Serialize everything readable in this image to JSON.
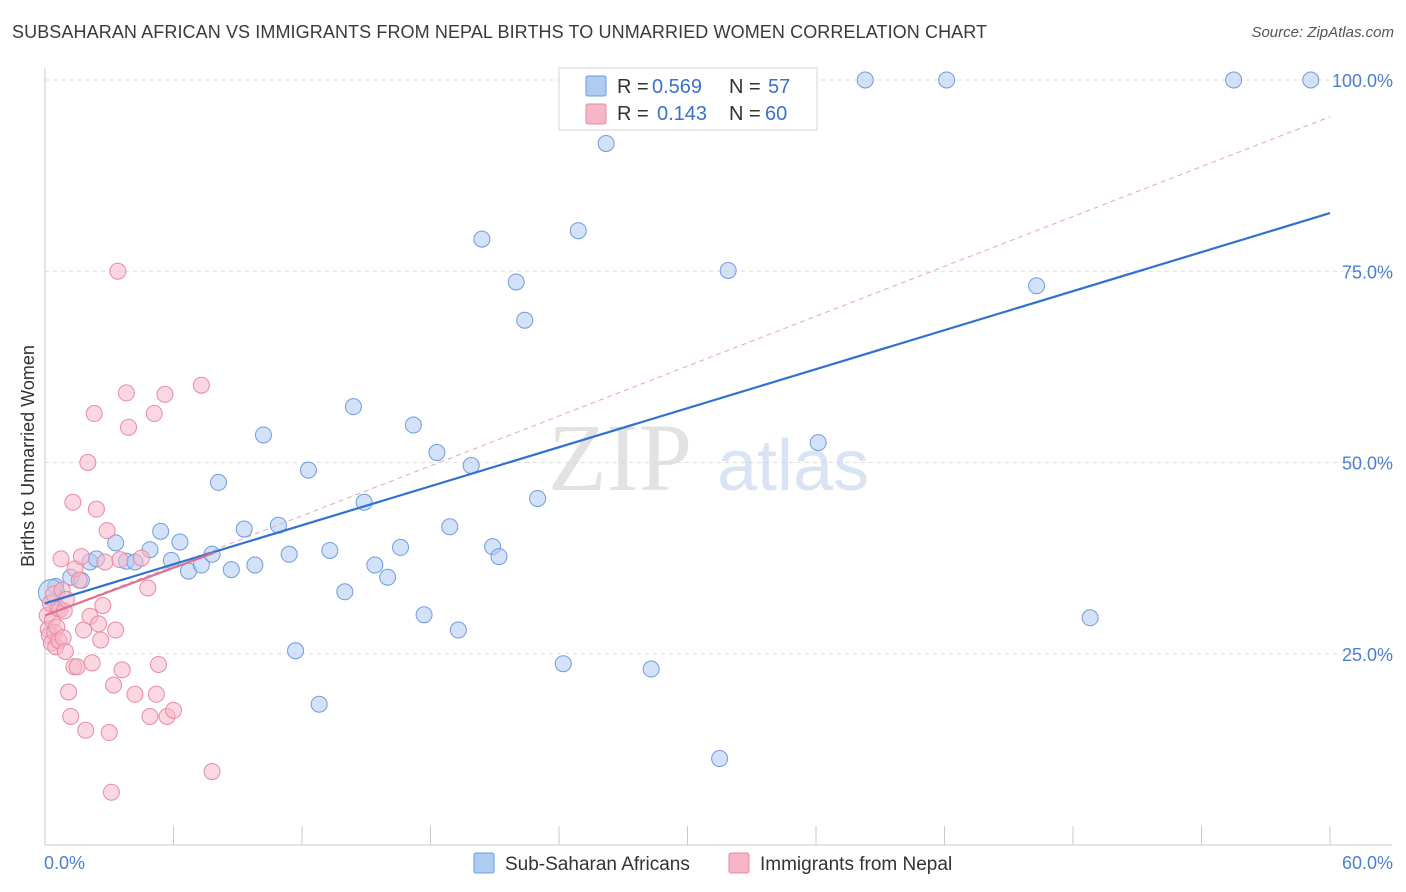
{
  "title": "SUBSAHARAN AFRICAN VS IMMIGRANTS FROM NEPAL BIRTHS TO UNMARRIED WOMEN CORRELATION CHART",
  "source": "Source: ZipAtlas.com",
  "watermark": {
    "zip": "ZIP",
    "atlas": "atlas"
  },
  "legend_top": [
    {
      "r_label": "R =",
      "r_value": "0.569",
      "n_label": "N =",
      "n_value": "57",
      "color": "#aecbf2"
    },
    {
      "r_label": "R =",
      "r_value": "0.143",
      "n_label": "N =",
      "n_value": "60",
      "color": "#f6b6c8"
    }
  ],
  "chart_data": {
    "type": "scatter",
    "title": "SUBSAHARAN AFRICAN VS IMMIGRANTS FROM NEPAL BIRTHS TO UNMARRIED WOMEN CORRELATION CHART",
    "xlabel": "",
    "ylabel": "Births to Unmarried Women",
    "xlim": [
      0,
      60
    ],
    "ylim": [
      0,
      100
    ],
    "x_tick_labels": [
      "0.0%",
      "60.0%"
    ],
    "y_tick_labels": [
      "25.0%",
      "50.0%",
      "75.0%",
      "100.0%"
    ],
    "y_ticks": [
      25,
      50,
      75,
      100
    ],
    "grid": true,
    "legend_position": "bottom",
    "series": [
      {
        "name": "Sub-Saharan Africans",
        "color": "#aecbf2",
        "edge": "#6f9be0",
        "trend_color": "#2f72d0",
        "trend": {
          "x": [
            0,
            60
          ],
          "y": [
            31.6,
            82.6
          ]
        },
        "points": [
          [
            0.5,
            33.8
          ],
          [
            1.2,
            35.0
          ],
          [
            1.7,
            34.6
          ],
          [
            2.1,
            37.0
          ],
          [
            2.4,
            37.4
          ],
          [
            3.3,
            39.5
          ],
          [
            3.8,
            37.1
          ],
          [
            4.2,
            37.0
          ],
          [
            4.9,
            38.6
          ],
          [
            5.4,
            41.0
          ],
          [
            5.9,
            37.2
          ],
          [
            6.3,
            39.6
          ],
          [
            6.7,
            35.8
          ],
          [
            7.3,
            36.6
          ],
          [
            7.8,
            38.0
          ],
          [
            8.1,
            47.4
          ],
          [
            8.7,
            36.0
          ],
          [
            9.3,
            41.3
          ],
          [
            9.8,
            36.6
          ],
          [
            10.2,
            53.6
          ],
          [
            10.9,
            41.8
          ],
          [
            11.4,
            38.0
          ],
          [
            11.7,
            25.4
          ],
          [
            12.3,
            49.0
          ],
          [
            12.8,
            18.4
          ],
          [
            13.3,
            38.5
          ],
          [
            14.0,
            33.1
          ],
          [
            14.4,
            57.3
          ],
          [
            14.9,
            44.8
          ],
          [
            15.4,
            36.6
          ],
          [
            16.0,
            35.0
          ],
          [
            16.6,
            38.9
          ],
          [
            17.2,
            54.9
          ],
          [
            17.7,
            30.1
          ],
          [
            18.3,
            51.3
          ],
          [
            18.9,
            41.6
          ],
          [
            19.3,
            28.1
          ],
          [
            19.9,
            49.6
          ],
          [
            20.4,
            79.2
          ],
          [
            20.9,
            39.0
          ],
          [
            21.2,
            37.7
          ],
          [
            22.0,
            73.6
          ],
          [
            22.4,
            68.6
          ],
          [
            23.0,
            45.3
          ],
          [
            24.2,
            23.7
          ],
          [
            24.9,
            80.3
          ],
          [
            26.2,
            91.7
          ],
          [
            28.3,
            23.0
          ],
          [
            31.5,
            11.3
          ],
          [
            31.9,
            75.1
          ],
          [
            36.1,
            52.6
          ],
          [
            38.3,
            100.0
          ],
          [
            42.1,
            100.0
          ],
          [
            46.3,
            73.1
          ],
          [
            48.8,
            29.7
          ],
          [
            55.5,
            100.0
          ],
          [
            59.1,
            100.0
          ]
        ]
      },
      {
        "name": "Immigrants from Nepal",
        "color": "#f6b6c8",
        "edge": "#e88aa6",
        "trend_color": "#e0708f",
        "trend": {
          "x": [
            0,
            7.9
          ],
          "y": [
            30.0,
            38.2
          ]
        },
        "dashed_trend": {
          "x": [
            0,
            60
          ],
          "y": [
            30.0,
            95.2
          ]
        },
        "points": [
          [
            0.1,
            30.0
          ],
          [
            0.15,
            28.2
          ],
          [
            0.2,
            27.4
          ],
          [
            0.25,
            31.6
          ],
          [
            0.3,
            26.4
          ],
          [
            0.35,
            29.4
          ],
          [
            0.4,
            32.8
          ],
          [
            0.45,
            27.8
          ],
          [
            0.5,
            25.9
          ],
          [
            0.55,
            28.5
          ],
          [
            0.6,
            31.0
          ],
          [
            0.65,
            26.7
          ],
          [
            0.7,
            30.8
          ],
          [
            0.75,
            37.4
          ],
          [
            0.8,
            33.3
          ],
          [
            0.85,
            27.1
          ],
          [
            0.9,
            30.6
          ],
          [
            0.95,
            25.3
          ],
          [
            1.0,
            32.1
          ],
          [
            1.1,
            20.0
          ],
          [
            1.2,
            16.8
          ],
          [
            1.3,
            44.8
          ],
          [
            1.35,
            23.3
          ],
          [
            1.4,
            36.1
          ],
          [
            1.5,
            23.3
          ],
          [
            1.6,
            34.6
          ],
          [
            1.7,
            37.7
          ],
          [
            1.8,
            28.1
          ],
          [
            1.9,
            15.0
          ],
          [
            2.0,
            50.0
          ],
          [
            2.1,
            29.9
          ],
          [
            2.2,
            23.8
          ],
          [
            2.3,
            56.4
          ],
          [
            2.4,
            43.9
          ],
          [
            2.5,
            28.9
          ],
          [
            2.6,
            26.8
          ],
          [
            2.7,
            31.3
          ],
          [
            2.8,
            37.0
          ],
          [
            2.9,
            41.1
          ],
          [
            3.0,
            14.7
          ],
          [
            3.1,
            6.9
          ],
          [
            3.2,
            20.9
          ],
          [
            3.3,
            28.1
          ],
          [
            3.4,
            75.0
          ],
          [
            3.5,
            37.3
          ],
          [
            3.6,
            22.9
          ],
          [
            3.8,
            59.1
          ],
          [
            3.9,
            54.6
          ],
          [
            4.2,
            19.7
          ],
          [
            4.5,
            37.5
          ],
          [
            4.8,
            33.6
          ],
          [
            4.9,
            16.8
          ],
          [
            5.1,
            56.4
          ],
          [
            5.2,
            19.7
          ],
          [
            5.3,
            23.6
          ],
          [
            5.6,
            58.9
          ],
          [
            5.7,
            16.8
          ],
          [
            6.0,
            17.6
          ],
          [
            7.3,
            60.1
          ],
          [
            7.8,
            9.6
          ]
        ]
      }
    ]
  },
  "legend_bottom": [
    {
      "label": "Sub-Saharan Africans",
      "color": "#aecbf2",
      "edge": "#6f9be0"
    },
    {
      "label": "Immigrants from Nepal",
      "color": "#f6b6c8",
      "edge": "#e88aa6"
    }
  ]
}
